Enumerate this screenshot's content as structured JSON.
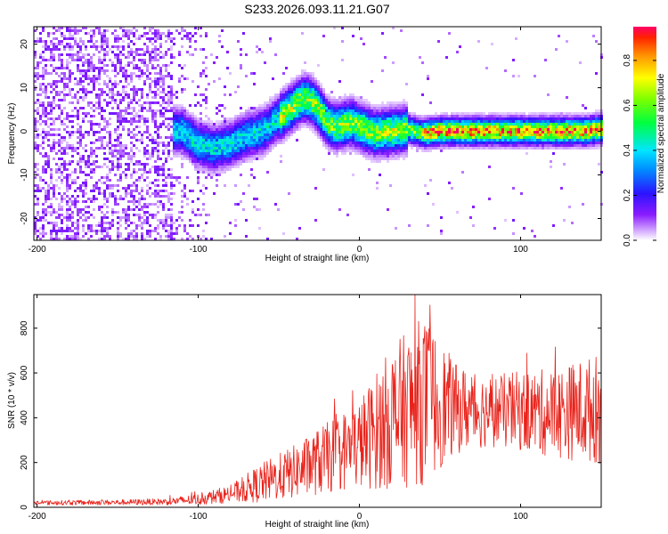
{
  "chart_data": [
    {
      "type": "heatmap",
      "title": "S233.2026.093.11.21.G07",
      "xlabel": "Height of straight line (km)",
      "ylabel": "Frequency (Hz)",
      "xlim": [
        -202,
        150
      ],
      "ylim": [
        -25,
        24
      ],
      "xticks": [
        -200,
        -100,
        0,
        100
      ],
      "yticks": [
        20,
        10,
        0,
        -10,
        -20
      ],
      "colorbar": {
        "label": "Normalized spectral amplitude",
        "range": [
          0,
          0.95
        ],
        "ticks": [
          "0.0",
          "0.2",
          "0.4",
          "0.6",
          "0.8"
        ]
      },
      "ridge": {
        "description": "Frequency trace of the dominant signal vs height",
        "x": [
          -110,
          -100,
          -90,
          -80,
          -70,
          -60,
          -50,
          -40,
          -35,
          -30,
          -25,
          -20,
          -15,
          -10,
          -5,
          0,
          10,
          20,
          30,
          40,
          50,
          60,
          80,
          100,
          120,
          140,
          150
        ],
        "y": [
          0,
          -3,
          -4,
          -3,
          -1,
          0,
          3,
          6,
          7.5,
          7,
          5,
          2,
          1,
          1.5,
          2,
          1,
          -0.5,
          0,
          0.5,
          -0.5,
          0,
          0,
          0,
          0,
          0,
          0,
          0.5
        ]
      }
    },
    {
      "type": "line",
      "xlabel": "Height of straight line (km)",
      "ylabel": "SNR (10 * v/v)",
      "xlim": [
        -202,
        150
      ],
      "ylim": [
        0,
        950
      ],
      "xticks": [
        -200,
        -100,
        0,
        100
      ],
      "yticks": [
        0,
        200,
        400,
        600,
        800
      ],
      "series": [
        {
          "name": "SNR",
          "color": "#e8231b",
          "envelope_x": [
            -202,
            -150,
            -120,
            -100,
            -80,
            -60,
            -40,
            -20,
            0,
            20,
            40,
            60,
            80,
            100,
            120,
            150
          ],
          "envelope_mean": [
            20,
            22,
            25,
            35,
            60,
            110,
            160,
            220,
            280,
            400,
            480,
            440,
            430,
            430,
            420,
            440
          ],
          "envelope_spread": [
            10,
            12,
            15,
            25,
            40,
            90,
            120,
            160,
            200,
            320,
            380,
            200,
            160,
            180,
            200,
            250
          ]
        }
      ]
    }
  ]
}
